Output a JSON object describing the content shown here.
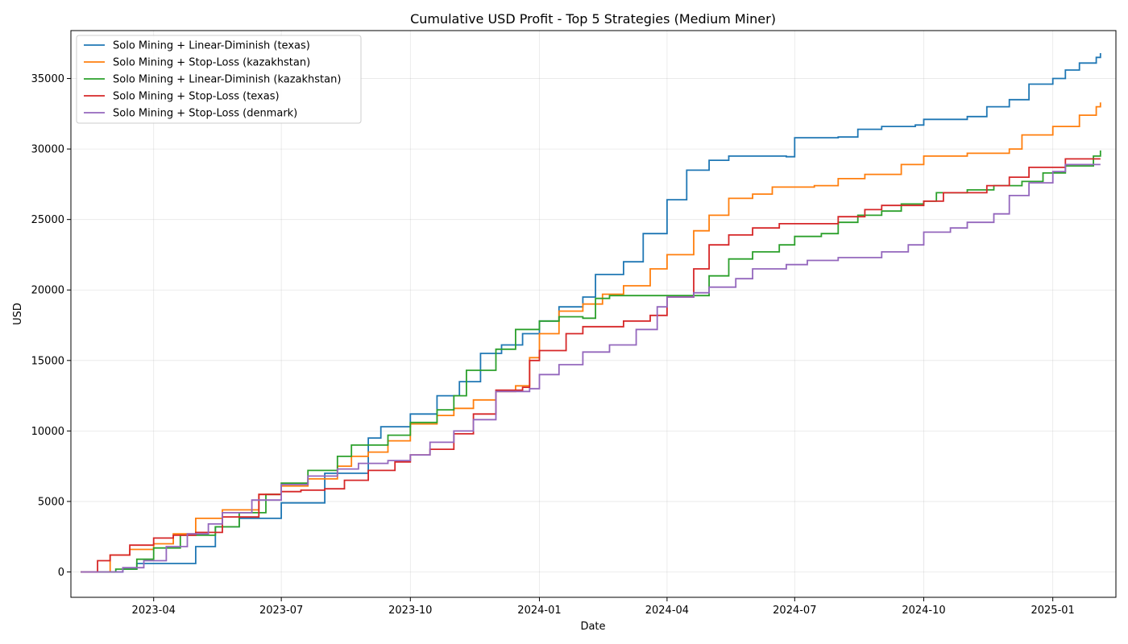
{
  "chart_data": {
    "type": "line",
    "title": "Cumulative USD Profit - Top 5 Strategies (Medium Miner)",
    "xlabel": "Date",
    "ylabel": "USD",
    "x_range": [
      "2023-02-01",
      "2025-02-15"
    ],
    "ylim": [
      -1800,
      38400
    ],
    "x_ticks": [
      {
        "date": "2023-04-01",
        "label": "2023-04"
      },
      {
        "date": "2023-07-01",
        "label": "2023-07"
      },
      {
        "date": "2023-10-01",
        "label": "2023-10"
      },
      {
        "date": "2024-01-01",
        "label": "2024-01"
      },
      {
        "date": "2024-04-01",
        "label": "2024-04"
      },
      {
        "date": "2024-07-01",
        "label": "2024-07"
      },
      {
        "date": "2024-10-01",
        "label": "2024-10"
      },
      {
        "date": "2025-01-01",
        "label": "2025-01"
      }
    ],
    "y_ticks": [
      0,
      5000,
      10000,
      15000,
      20000,
      25000,
      30000,
      35000
    ],
    "grid": true,
    "legend_position": "top-left",
    "series": [
      {
        "name": "Solo Mining + Linear-Diminish (texas)",
        "color": "#1f77b4",
        "points": [
          [
            "2023-02-08",
            0
          ],
          [
            "2023-03-10",
            200
          ],
          [
            "2023-03-20",
            600
          ],
          [
            "2023-04-15",
            600
          ],
          [
            "2023-05-01",
            1800
          ],
          [
            "2023-05-15",
            3200
          ],
          [
            "2023-06-01",
            3800
          ],
          [
            "2023-07-01",
            4900
          ],
          [
            "2023-08-01",
            7000
          ],
          [
            "2023-09-01",
            9500
          ],
          [
            "2023-09-10",
            10300
          ],
          [
            "2023-10-01",
            11200
          ],
          [
            "2023-10-20",
            12500
          ],
          [
            "2023-11-05",
            13500
          ],
          [
            "2023-11-20",
            15500
          ],
          [
            "2023-12-05",
            16100
          ],
          [
            "2023-12-20",
            16900
          ],
          [
            "2024-01-01",
            17800
          ],
          [
            "2024-01-15",
            18800
          ],
          [
            "2024-02-01",
            19500
          ],
          [
            "2024-02-10",
            21100
          ],
          [
            "2024-03-01",
            22000
          ],
          [
            "2024-03-15",
            24000
          ],
          [
            "2024-04-01",
            26400
          ],
          [
            "2024-04-15",
            28500
          ],
          [
            "2024-05-01",
            29200
          ],
          [
            "2024-05-15",
            29500
          ],
          [
            "2024-06-25",
            29450
          ],
          [
            "2024-07-01",
            30800
          ],
          [
            "2024-08-01",
            30850
          ],
          [
            "2024-08-15",
            31400
          ],
          [
            "2024-09-01",
            31600
          ],
          [
            "2024-09-25",
            31700
          ],
          [
            "2024-10-01",
            32100
          ],
          [
            "2024-11-01",
            32300
          ],
          [
            "2024-11-15",
            33000
          ],
          [
            "2024-12-01",
            33500
          ],
          [
            "2024-12-15",
            34600
          ],
          [
            "2025-01-01",
            35000
          ],
          [
            "2025-01-10",
            35600
          ],
          [
            "2025-01-20",
            36100
          ],
          [
            "2025-02-01",
            36500
          ],
          [
            "2025-02-04",
            36800
          ]
        ]
      },
      {
        "name": "Solo Mining + Stop-Loss (kazakhstan)",
        "color": "#ff7f0e",
        "points": [
          [
            "2023-02-08",
            0
          ],
          [
            "2023-03-01",
            1200
          ],
          [
            "2023-03-15",
            1600
          ],
          [
            "2023-04-01",
            2000
          ],
          [
            "2023-04-15",
            2700
          ],
          [
            "2023-05-01",
            3800
          ],
          [
            "2023-05-20",
            4400
          ],
          [
            "2023-06-15",
            5500
          ],
          [
            "2023-07-01",
            6100
          ],
          [
            "2023-07-20",
            6600
          ],
          [
            "2023-08-10",
            7500
          ],
          [
            "2023-08-20",
            8200
          ],
          [
            "2023-09-01",
            8500
          ],
          [
            "2023-09-15",
            9300
          ],
          [
            "2023-10-01",
            10500
          ],
          [
            "2023-10-20",
            11100
          ],
          [
            "2023-11-01",
            11600
          ],
          [
            "2023-11-15",
            12200
          ],
          [
            "2023-12-01",
            12800
          ],
          [
            "2023-12-15",
            13200
          ],
          [
            "2023-12-25",
            15200
          ],
          [
            "2024-01-01",
            16900
          ],
          [
            "2024-01-15",
            18500
          ],
          [
            "2024-02-01",
            19000
          ],
          [
            "2024-02-15",
            19700
          ],
          [
            "2024-03-01",
            20300
          ],
          [
            "2024-03-20",
            21500
          ],
          [
            "2024-04-01",
            22500
          ],
          [
            "2024-04-20",
            24200
          ],
          [
            "2024-05-01",
            25300
          ],
          [
            "2024-05-15",
            26500
          ],
          [
            "2024-06-01",
            26800
          ],
          [
            "2024-06-15",
            27300
          ],
          [
            "2024-07-15",
            27400
          ],
          [
            "2024-08-01",
            27900
          ],
          [
            "2024-08-20",
            28200
          ],
          [
            "2024-09-15",
            28900
          ],
          [
            "2024-10-01",
            29500
          ],
          [
            "2024-11-01",
            29700
          ],
          [
            "2024-12-01",
            30000
          ],
          [
            "2024-12-10",
            31000
          ],
          [
            "2025-01-01",
            31600
          ],
          [
            "2025-01-20",
            32400
          ],
          [
            "2025-02-01",
            33000
          ],
          [
            "2025-02-04",
            33300
          ]
        ]
      },
      {
        "name": "Solo Mining + Linear-Diminish (kazakhstan)",
        "color": "#2ca02c",
        "points": [
          [
            "2023-02-08",
            0
          ],
          [
            "2023-03-05",
            200
          ],
          [
            "2023-03-20",
            900
          ],
          [
            "2023-04-01",
            1700
          ],
          [
            "2023-04-20",
            2600
          ],
          [
            "2023-05-15",
            3200
          ],
          [
            "2023-06-01",
            4200
          ],
          [
            "2023-06-20",
            5500
          ],
          [
            "2023-07-01",
            6300
          ],
          [
            "2023-07-20",
            7200
          ],
          [
            "2023-08-10",
            8200
          ],
          [
            "2023-08-20",
            9000
          ],
          [
            "2023-09-15",
            9700
          ],
          [
            "2023-10-01",
            10600
          ],
          [
            "2023-10-20",
            11500
          ],
          [
            "2023-11-01",
            12500
          ],
          [
            "2023-11-10",
            14300
          ],
          [
            "2023-12-01",
            15800
          ],
          [
            "2023-12-15",
            17200
          ],
          [
            "2024-01-01",
            17800
          ],
          [
            "2024-01-15",
            18100
          ],
          [
            "2024-02-01",
            18000
          ],
          [
            "2024-02-10",
            19400
          ],
          [
            "2024-02-20",
            19600
          ],
          [
            "2024-04-15",
            19600
          ],
          [
            "2024-05-01",
            21000
          ],
          [
            "2024-05-15",
            22200
          ],
          [
            "2024-06-01",
            22700
          ],
          [
            "2024-06-20",
            23200
          ],
          [
            "2024-07-01",
            23800
          ],
          [
            "2024-07-20",
            24000
          ],
          [
            "2024-08-01",
            24800
          ],
          [
            "2024-08-15",
            25300
          ],
          [
            "2024-09-01",
            25600
          ],
          [
            "2024-09-15",
            26100
          ],
          [
            "2024-10-01",
            26300
          ],
          [
            "2024-10-10",
            26900
          ],
          [
            "2024-11-01",
            27100
          ],
          [
            "2024-11-20",
            27400
          ],
          [
            "2024-12-10",
            27700
          ],
          [
            "2024-12-25",
            28300
          ],
          [
            "2025-01-10",
            28800
          ],
          [
            "2025-01-30",
            29500
          ],
          [
            "2025-02-04",
            29900
          ]
        ]
      },
      {
        "name": "Solo Mining + Stop-Loss (texas)",
        "color": "#d62728",
        "points": [
          [
            "2023-02-08",
            0
          ],
          [
            "2023-02-20",
            800
          ],
          [
            "2023-03-01",
            1200
          ],
          [
            "2023-03-15",
            1900
          ],
          [
            "2023-04-01",
            2400
          ],
          [
            "2023-04-15",
            2600
          ],
          [
            "2023-05-01",
            2800
          ],
          [
            "2023-05-20",
            3900
          ],
          [
            "2023-06-15",
            5500
          ],
          [
            "2023-07-01",
            5700
          ],
          [
            "2023-07-15",
            5800
          ],
          [
            "2023-08-01",
            5900
          ],
          [
            "2023-08-15",
            6500
          ],
          [
            "2023-09-01",
            7200
          ],
          [
            "2023-09-20",
            7800
          ],
          [
            "2023-10-01",
            8300
          ],
          [
            "2023-10-15",
            8700
          ],
          [
            "2023-11-01",
            9800
          ],
          [
            "2023-11-15",
            11200
          ],
          [
            "2023-12-01",
            12900
          ],
          [
            "2023-12-20",
            13100
          ],
          [
            "2023-12-25",
            15000
          ],
          [
            "2024-01-01",
            15700
          ],
          [
            "2024-01-20",
            16900
          ],
          [
            "2024-02-01",
            17400
          ],
          [
            "2024-03-01",
            17800
          ],
          [
            "2024-03-20",
            18200
          ],
          [
            "2024-04-01",
            19500
          ],
          [
            "2024-04-20",
            21500
          ],
          [
            "2024-05-01",
            23200
          ],
          [
            "2024-05-15",
            23900
          ],
          [
            "2024-06-01",
            24400
          ],
          [
            "2024-06-20",
            24700
          ],
          [
            "2024-07-20",
            24700
          ],
          [
            "2024-08-01",
            25200
          ],
          [
            "2024-08-20",
            25700
          ],
          [
            "2024-09-01",
            26000
          ],
          [
            "2024-10-01",
            26300
          ],
          [
            "2024-10-15",
            26900
          ],
          [
            "2024-11-15",
            27400
          ],
          [
            "2024-12-01",
            28000
          ],
          [
            "2024-12-15",
            28700
          ],
          [
            "2025-01-10",
            29300
          ],
          [
            "2025-02-04",
            29300
          ]
        ]
      },
      {
        "name": "Solo Mining + Stop-Loss (denmark)",
        "color": "#9467bd",
        "points": [
          [
            "2023-02-08",
            0
          ],
          [
            "2023-03-10",
            300
          ],
          [
            "2023-03-25",
            800
          ],
          [
            "2023-04-10",
            1800
          ],
          [
            "2023-04-25",
            2700
          ],
          [
            "2023-05-10",
            3400
          ],
          [
            "2023-05-20",
            4200
          ],
          [
            "2023-06-10",
            5100
          ],
          [
            "2023-07-01",
            6200
          ],
          [
            "2023-07-20",
            6800
          ],
          [
            "2023-08-10",
            7300
          ],
          [
            "2023-08-25",
            7700
          ],
          [
            "2023-09-15",
            7900
          ],
          [
            "2023-10-01",
            8300
          ],
          [
            "2023-10-15",
            9200
          ],
          [
            "2023-11-01",
            10000
          ],
          [
            "2023-11-15",
            10800
          ],
          [
            "2023-12-01",
            12800
          ],
          [
            "2023-12-25",
            13000
          ],
          [
            "2024-01-01",
            14000
          ],
          [
            "2024-01-15",
            14700
          ],
          [
            "2024-02-01",
            15600
          ],
          [
            "2024-02-20",
            16100
          ],
          [
            "2024-03-10",
            17200
          ],
          [
            "2024-03-25",
            18800
          ],
          [
            "2024-04-01",
            19500
          ],
          [
            "2024-04-20",
            19800
          ],
          [
            "2024-05-01",
            20200
          ],
          [
            "2024-05-20",
            20800
          ],
          [
            "2024-06-01",
            21500
          ],
          [
            "2024-06-25",
            21800
          ],
          [
            "2024-07-10",
            22100
          ],
          [
            "2024-08-01",
            22300
          ],
          [
            "2024-09-01",
            22700
          ],
          [
            "2024-09-20",
            23200
          ],
          [
            "2024-10-01",
            24100
          ],
          [
            "2024-10-20",
            24400
          ],
          [
            "2024-11-01",
            24800
          ],
          [
            "2024-11-20",
            25400
          ],
          [
            "2024-12-01",
            26700
          ],
          [
            "2024-12-15",
            27600
          ],
          [
            "2025-01-01",
            28400
          ],
          [
            "2025-01-10",
            28900
          ],
          [
            "2025-02-04",
            28900
          ]
        ]
      }
    ]
  }
}
